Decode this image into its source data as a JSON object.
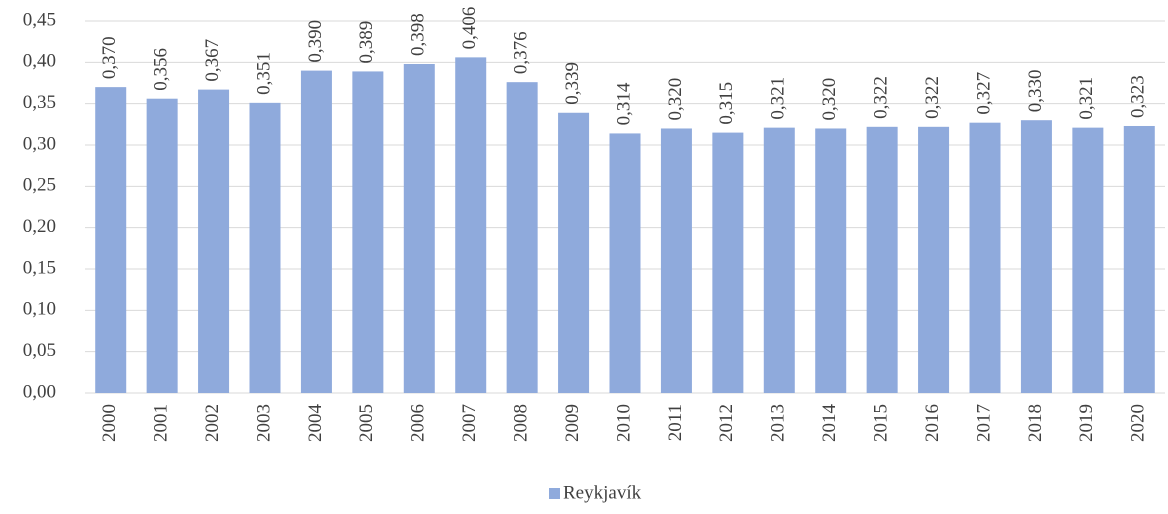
{
  "chart_data": {
    "type": "bar",
    "categories": [
      "2000",
      "2001",
      "2002",
      "2003",
      "2004",
      "2005",
      "2006",
      "2007",
      "2008",
      "2009",
      "2010",
      "2011",
      "2012",
      "2013",
      "2014",
      "2015",
      "2016",
      "2017",
      "2018",
      "2019",
      "2020"
    ],
    "series": [
      {
        "name": "Reykjavík",
        "color": "#8faadc",
        "values": [
          0.37,
          0.356,
          0.367,
          0.351,
          0.39,
          0.389,
          0.398,
          0.406,
          0.376,
          0.339,
          0.314,
          0.32,
          0.315,
          0.321,
          0.32,
          0.322,
          0.322,
          0.327,
          0.33,
          0.321,
          0.323
        ],
        "value_labels": [
          "0,370",
          "0,356",
          "0,367",
          "0,351",
          "0,390",
          "0,389",
          "0,398",
          "0,406",
          "0,376",
          "0,339",
          "0,314",
          "0,320",
          "0,315",
          "0,321",
          "0,320",
          "0,322",
          "0,322",
          "0,327",
          "0,330",
          "0,321",
          "0,323"
        ]
      }
    ],
    "ylim": [
      0,
      0.45
    ],
    "yticks": [
      {
        "value": 0,
        "label": "0,00"
      },
      {
        "value": 0.05,
        "label": "0,05"
      },
      {
        "value": 0.1,
        "label": "0,10"
      },
      {
        "value": 0.15,
        "label": "0,15"
      },
      {
        "value": 0.2,
        "label": "0,20"
      },
      {
        "value": 0.25,
        "label": "0,25"
      },
      {
        "value": 0.3,
        "label": "0,30"
      },
      {
        "value": 0.35,
        "label": "0,35"
      },
      {
        "value": 0.4,
        "label": "0,40"
      },
      {
        "value": 0.45,
        "label": "0,45"
      }
    ],
    "grid": true,
    "legend": "bottom"
  }
}
